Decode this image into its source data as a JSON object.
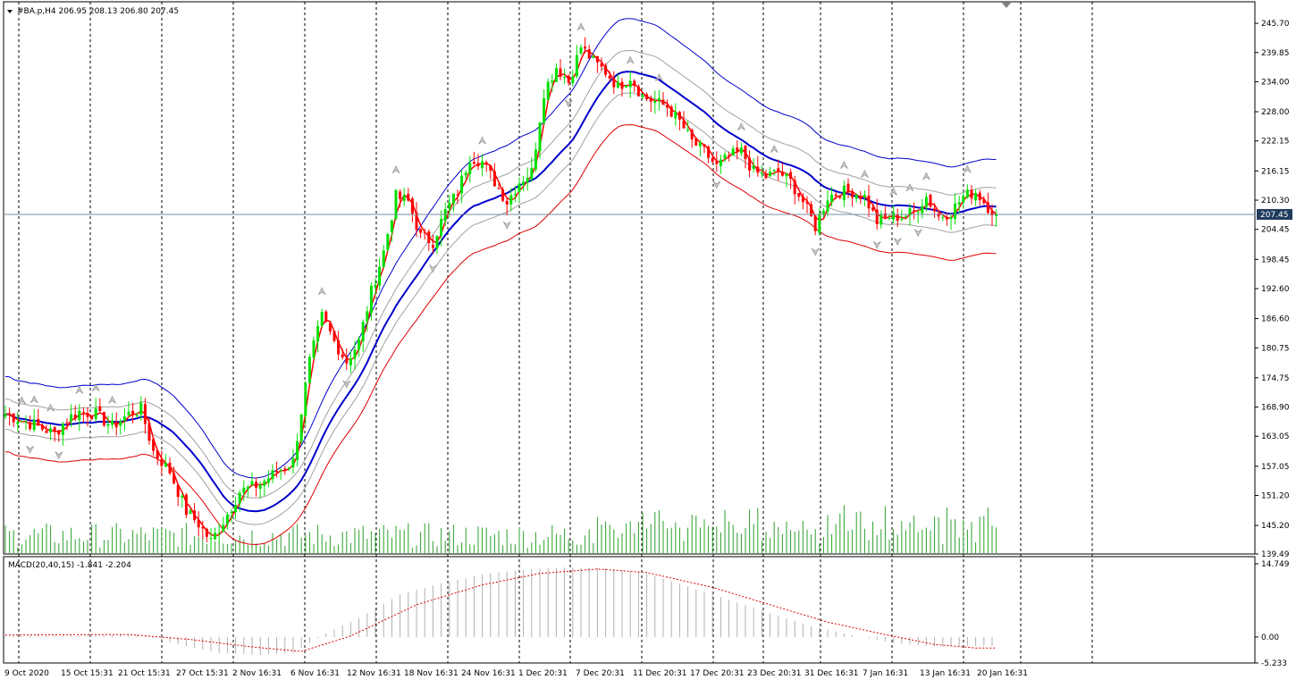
{
  "chart_data": [
    {
      "type": "candlestick",
      "symbol_info": "#BA.p,H4  206.95 208.13 206.80 207.45",
      "timeframe": "H4",
      "current_price": "207.45",
      "ylim": [
        139.49,
        250
      ],
      "y_ticks": [
        "245.70",
        "239.85",
        "234.00",
        "228.00",
        "222.15",
        "216.15",
        "210.30",
        "204.45",
        "198.45",
        "192.60",
        "186.60",
        "180.75",
        "174.75",
        "168.90",
        "163.05",
        "157.05",
        "151.20",
        "145.20",
        "139.49"
      ],
      "x_tick_labels": [
        "9 Oct 2020",
        "15 Oct 15:31",
        "21 Oct 15:31",
        "27 Oct 15:31",
        "2 Nov 16:31",
        "6 Nov 16:31",
        "12 Nov 16:31",
        "18 Nov 16:31",
        "24 Nov 16:31",
        "1 Dec 20:31",
        "7 Dec 20:31",
        "11 Dec 20:31",
        "17 Dec 20:31",
        "23 Dec 20:31",
        "31 Dec 16:31",
        "7 Jan 16:31",
        "13 Jan 16:31",
        "20 Jan 16:31"
      ],
      "close_anchors": [
        [
          0,
          167.5
        ],
        [
          8,
          165
        ],
        [
          12,
          163.5
        ],
        [
          15,
          166.5
        ],
        [
          18,
          168
        ],
        [
          22,
          167.5
        ],
        [
          26,
          165
        ],
        [
          30,
          167.5
        ],
        [
          33,
          168.5
        ],
        [
          36,
          160
        ],
        [
          40,
          156
        ],
        [
          44,
          148
        ],
        [
          47,
          145.5
        ],
        [
          50,
          142
        ],
        [
          53,
          146
        ],
        [
          57,
          152
        ],
        [
          62,
          153.5
        ],
        [
          66,
          156
        ],
        [
          70,
          158
        ],
        [
          74,
          178
        ],
        [
          77,
          187
        ],
        [
          80,
          182
        ],
        [
          83,
          178
        ],
        [
          86,
          182
        ],
        [
          89,
          192
        ],
        [
          92,
          200
        ],
        [
          95,
          211
        ],
        [
          98,
          210
        ],
        [
          101,
          203
        ],
        [
          104,
          202
        ],
        [
          107,
          208
        ],
        [
          110,
          212
        ],
        [
          113,
          219
        ],
        [
          116,
          218
        ],
        [
          119,
          214
        ],
        [
          122,
          210
        ],
        [
          125,
          214
        ],
        [
          128,
          216
        ],
        [
          131,
          232
        ],
        [
          134,
          237
        ],
        [
          137,
          234
        ],
        [
          140,
          241
        ],
        [
          143,
          238
        ],
        [
          146,
          236
        ],
        [
          149,
          233
        ],
        [
          152,
          235
        ],
        [
          155,
          231
        ],
        [
          158,
          230
        ],
        [
          161,
          229
        ],
        [
          164,
          226
        ],
        [
          167,
          222
        ],
        [
          170,
          220
        ],
        [
          173,
          217
        ],
        [
          176,
          219
        ],
        [
          179,
          220
        ],
        [
          182,
          216
        ],
        [
          185,
          215
        ],
        [
          188,
          216
        ],
        [
          191,
          214
        ],
        [
          194,
          210
        ],
        [
          197,
          205
        ],
        [
          200,
          211
        ],
        [
          203,
          212
        ],
        [
          206,
          212
        ],
        [
          209,
          211
        ],
        [
          212,
          206
        ],
        [
          215,
          207
        ],
        [
          218,
          207
        ],
        [
          221,
          208
        ],
        [
          224,
          211
        ],
        [
          227,
          207
        ],
        [
          230,
          208
        ],
        [
          233,
          211
        ],
        [
          236,
          212
        ],
        [
          239,
          209
        ],
        [
          241,
          207.45
        ]
      ],
      "band_colors": {
        "upper": "#0000cc",
        "middle": "#0000cc",
        "lower": "#dd0000",
        "inner": "#a0a0a0",
        "price_line": "#ff0000"
      },
      "candle_colors": {
        "up": "#00e000",
        "down": "#ff0000"
      }
    },
    {
      "type": "histogram",
      "indicator_label": "MACD(20,40,15) -1.841 -2.204",
      "ylim": [
        -5.233,
        14.749
      ],
      "y_ticks": [
        "14.749",
        "0.00",
        "-5.233"
      ],
      "macd_anchors": [
        [
          0,
          0.2
        ],
        [
          20,
          0.3
        ],
        [
          33,
          0.5
        ],
        [
          42,
          -1.5
        ],
        [
          52,
          -3.2
        ],
        [
          62,
          -3.6
        ],
        [
          70,
          -3.2
        ],
        [
          78,
          0.8
        ],
        [
          86,
          3.8
        ],
        [
          96,
          8.6
        ],
        [
          106,
          10.8
        ],
        [
          116,
          12.6
        ],
        [
          126,
          13.6
        ],
        [
          136,
          14.0
        ],
        [
          146,
          13.9
        ],
        [
          156,
          12.8
        ],
        [
          166,
          10.2
        ],
        [
          176,
          7.5
        ],
        [
          186,
          4.8
        ],
        [
          196,
          2.2
        ],
        [
          206,
          0.4
        ],
        [
          216,
          -1.2
        ],
        [
          226,
          -1.9
        ],
        [
          236,
          -1.8
        ],
        [
          241,
          -1.841
        ]
      ],
      "signal_anchors": [
        [
          0,
          0.4
        ],
        [
          30,
          0.5
        ],
        [
          45,
          -0.5
        ],
        [
          60,
          -2.0
        ],
        [
          72,
          -2.9
        ],
        [
          84,
          0.2
        ],
        [
          100,
          6.5
        ],
        [
          116,
          10.5
        ],
        [
          130,
          12.8
        ],
        [
          144,
          13.7
        ],
        [
          156,
          13.0
        ],
        [
          172,
          10.0
        ],
        [
          186,
          6.5
        ],
        [
          200,
          3.0
        ],
        [
          214,
          0.5
        ],
        [
          226,
          -1.5
        ],
        [
          236,
          -2.2
        ],
        [
          241,
          -2.204
        ]
      ],
      "histogram_color": "#b0b0b0",
      "signal_color": "#dd0000"
    }
  ]
}
